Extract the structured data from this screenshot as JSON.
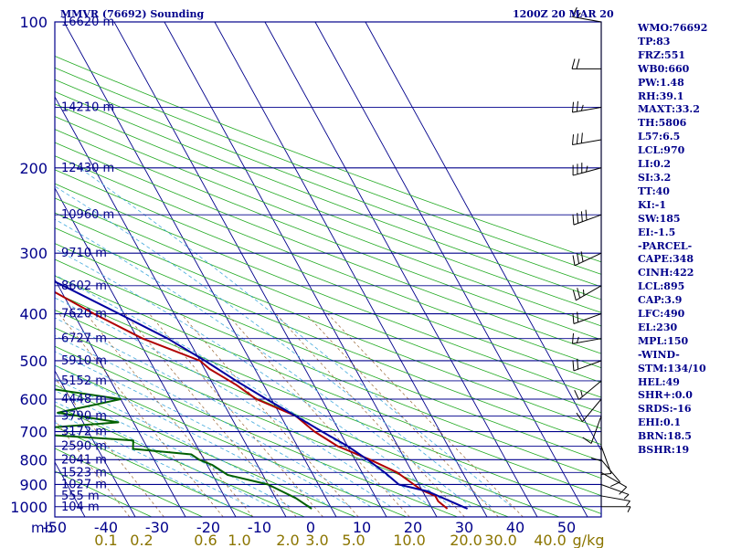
{
  "chart_data": {
    "type": "line",
    "title": "MMVR (76692) Sounding",
    "time": "1200Z 20 MAR 20",
    "pressure_axis_label": "mb",
    "pressure_ticks": [
      100,
      200,
      300,
      400,
      500,
      600,
      700,
      800,
      900,
      1000
    ],
    "temperature_ticks": [
      -50,
      -40,
      -30,
      -20,
      -10,
      0,
      10,
      20,
      30,
      40,
      50
    ],
    "mixing_ratio_unit": "g/kg",
    "mixing_ratio_ticks": [
      "0.1",
      "0.2",
      "0.6",
      "1.0",
      "2.0",
      "3.0",
      "5.0",
      "10.0",
      "20.0",
      "30.0",
      "40.0"
    ],
    "heights": [
      {
        "p": 100,
        "label": "16620 m"
      },
      {
        "p": 150,
        "label": "14210 m"
      },
      {
        "p": 200,
        "label": "12430 m"
      },
      {
        "p": 250,
        "label": "10960 m"
      },
      {
        "p": 300,
        "label": "9710 m"
      },
      {
        "p": 350,
        "label": "8602 m"
      },
      {
        "p": 400,
        "label": "7620 m"
      },
      {
        "p": 450,
        "label": "6727 m"
      },
      {
        "p": 500,
        "label": "5910 m"
      },
      {
        "p": 550,
        "label": "5152 m"
      },
      {
        "p": 600,
        "label": "4448 m"
      },
      {
        "p": 650,
        "label": "3790 m"
      },
      {
        "p": 700,
        "label": "3172 m"
      },
      {
        "p": 750,
        "label": "2590 m"
      },
      {
        "p": 800,
        "label": "2041 m"
      },
      {
        "p": 850,
        "label": "1523 m"
      },
      {
        "p": 900,
        "label": "1027 m"
      },
      {
        "p": 950,
        "label": "555 m"
      },
      {
        "p": 1000,
        "label": "104 m"
      }
    ],
    "series": [
      {
        "color": "#b00000",
        "points": [
          [
            100,
            -65
          ],
          [
            120,
            -66
          ],
          [
            150,
            -68
          ],
          [
            200,
            -57
          ],
          [
            250,
            -50
          ],
          [
            300,
            -42
          ],
          [
            350,
            -33
          ],
          [
            400,
            -26
          ],
          [
            450,
            -19
          ],
          [
            500,
            -10
          ],
          [
            520,
            -9
          ],
          [
            560,
            -5.5
          ],
          [
            600,
            -3
          ],
          [
            650,
            3
          ],
          [
            700,
            5
          ],
          [
            750,
            8
          ],
          [
            800,
            13
          ],
          [
            850,
            17
          ],
          [
            900,
            19
          ],
          [
            925,
            20
          ],
          [
            950,
            22
          ],
          [
            975,
            22
          ],
          [
            1010,
            23
          ]
        ]
      },
      {
        "color": "#006000",
        "points": [
          [
            110,
            -80
          ],
          [
            140,
            -75
          ],
          [
            155,
            -72
          ],
          [
            170,
            -75
          ],
          [
            190,
            -80
          ],
          [
            200,
            -82
          ],
          [
            230,
            -73
          ],
          [
            260,
            -68
          ],
          [
            290,
            -64
          ],
          [
            300,
            -63
          ],
          [
            330,
            -60
          ],
          [
            360,
            -64
          ],
          [
            370,
            -54
          ],
          [
            380,
            -65
          ],
          [
            390,
            -52
          ],
          [
            400,
            -58
          ],
          [
            430,
            -55
          ],
          [
            460,
            -58
          ],
          [
            500,
            -60
          ],
          [
            530,
            -52
          ],
          [
            560,
            -48
          ],
          [
            600,
            -30
          ],
          [
            640,
            -44
          ],
          [
            670,
            -33
          ],
          [
            700,
            -58
          ],
          [
            730,
            -32
          ],
          [
            760,
            -33
          ],
          [
            780,
            -22
          ],
          [
            800,
            -21
          ],
          [
            820,
            -19
          ],
          [
            860,
            -17
          ],
          [
            900,
            -10
          ],
          [
            930,
            -8
          ],
          [
            960,
            -6
          ],
          [
            1010,
            -4
          ]
        ]
      },
      {
        "color": "#0000a0",
        "points": [
          [
            110,
            -70
          ],
          [
            150,
            -64
          ],
          [
            200,
            -57
          ],
          [
            250,
            -48.5
          ],
          [
            300,
            -39
          ],
          [
            350,
            -29
          ],
          [
            400,
            -21
          ],
          [
            450,
            -14
          ],
          [
            500,
            -9
          ],
          [
            550,
            -5
          ],
          [
            600,
            -1
          ],
          [
            650,
            3
          ],
          [
            700,
            6.5
          ],
          [
            750,
            10
          ],
          [
            800,
            12.5
          ],
          [
            850,
            14.5
          ],
          [
            900,
            16
          ],
          [
            930,
            21
          ],
          [
            1010,
            27
          ]
        ]
      }
    ]
  },
  "indices": [
    "WMO:76692",
    "TP:83",
    "FRZ:551",
    "WB0:660",
    "PW:1.48",
    "RH:39.1",
    "MAXT:33.2",
    "TH:5806",
    "L57:6.5",
    "LCL:970",
    "LI:0.2",
    "SI:3.2",
    "TT:40",
    "KI:-1",
    "SW:185",
    "EI:-1.5",
    "-PARCEL-",
    "CAPE:348",
    "CINH:422",
    "LCL:895",
    "CAP:3.9",
    "LFC:490",
    "EL:230",
    "MPL:150",
    "-WIND-",
    "STM:134/10",
    "HEL:49",
    "SHR+:0.0",
    "SRDS:-16",
    "EHI:0.1",
    "BRN:18.5",
    "BSHR:19"
  ],
  "colors": {
    "frame": "#00008b",
    "isobar": "#00008b",
    "isotherm": "#00008b",
    "dry_adiabat": "#22aa22",
    "moist_adiabat": "#44aadd",
    "mixing_ratio": "#996633",
    "temperature": "#b00000",
    "dewpoint": "#006000",
    "parcel": "#0000a0",
    "wind": "#000000",
    "mixing_label": "#8b7500"
  },
  "wind_barbs": [
    {
      "p": 100,
      "dir": 280,
      "spd": 15
    },
    {
      "p": 125,
      "dir": 270,
      "spd": 20
    },
    {
      "p": 150,
      "dir": 260,
      "spd": 25
    },
    {
      "p": 175,
      "dir": 260,
      "spd": 30
    },
    {
      "p": 200,
      "dir": 255,
      "spd": 35
    },
    {
      "p": 250,
      "dir": 250,
      "spd": 40
    },
    {
      "p": 300,
      "dir": 245,
      "spd": 30
    },
    {
      "p": 350,
      "dir": 240,
      "spd": 25
    },
    {
      "p": 400,
      "dir": 250,
      "spd": 20
    },
    {
      "p": 450,
      "dir": 260,
      "spd": 15
    },
    {
      "p": 500,
      "dir": 250,
      "spd": 20
    },
    {
      "p": 550,
      "dir": 230,
      "spd": 15
    },
    {
      "p": 600,
      "dir": 220,
      "spd": 10
    },
    {
      "p": 650,
      "dir": 200,
      "spd": 10
    },
    {
      "p": 700,
      "dir": 180,
      "spd": 10
    },
    {
      "p": 750,
      "dir": 160,
      "spd": 10
    },
    {
      "p": 800,
      "dir": 140,
      "spd": 10
    },
    {
      "p": 850,
      "dir": 120,
      "spd": 10
    },
    {
      "p": 900,
      "dir": 110,
      "spd": 5
    },
    {
      "p": 950,
      "dir": 100,
      "spd": 5
    },
    {
      "p": 1000,
      "dir": 90,
      "spd": 5
    }
  ]
}
